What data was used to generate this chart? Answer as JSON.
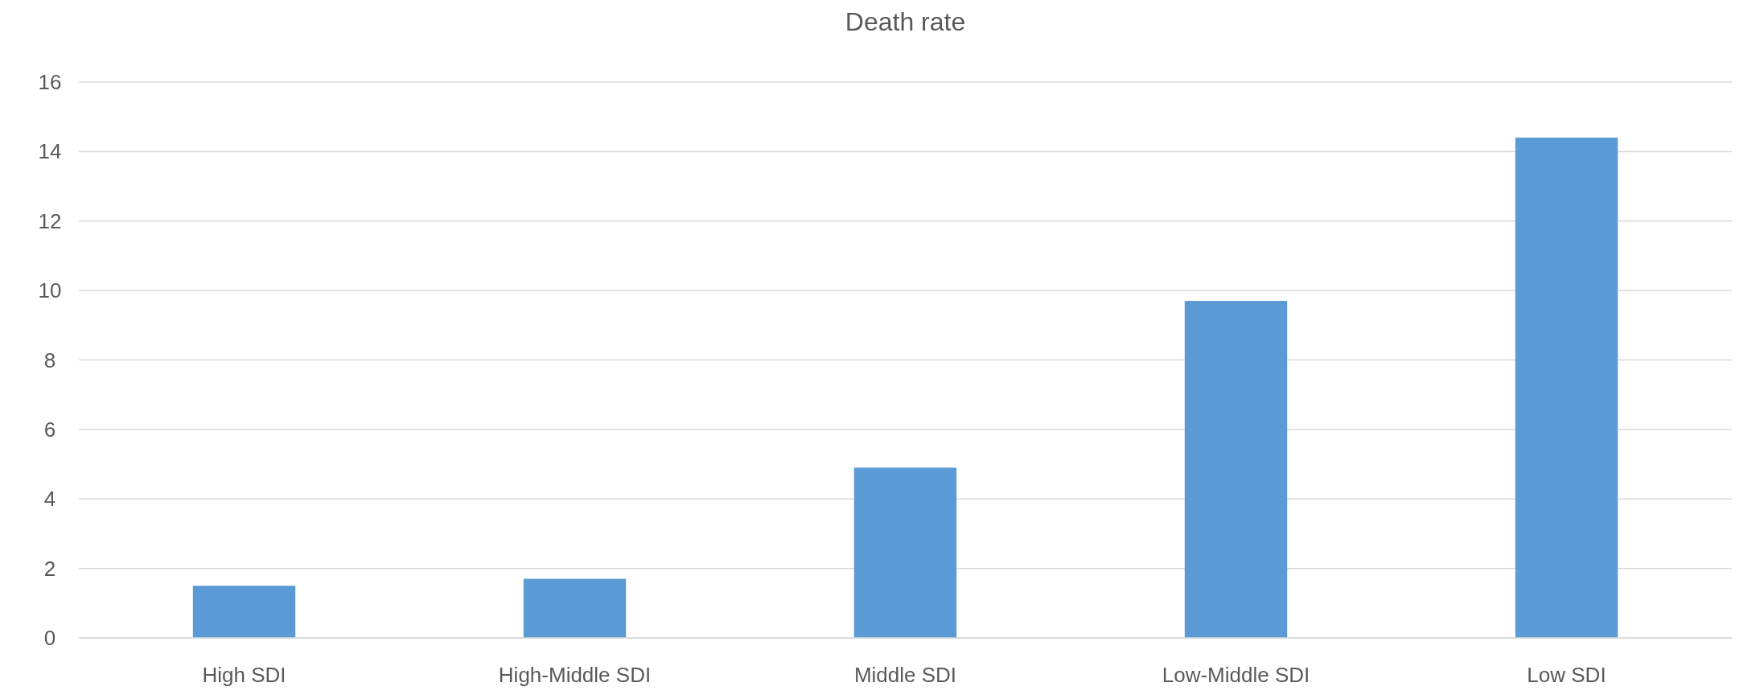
{
  "chart_data": {
    "type": "bar",
    "title": "Death rate",
    "categories": [
      "High SDI",
      "High-Middle SDI",
      "Middle SDI",
      "Low-Middle SDI",
      "Low SDI"
    ],
    "values": [
      1.5,
      1.7,
      4.9,
      9.7,
      14.4
    ],
    "color": "#5b9bd5",
    "ylim": [
      0,
      16
    ],
    "yticks": [
      0,
      2,
      4,
      6,
      8,
      10,
      12,
      14,
      16
    ],
    "grid": "y"
  }
}
